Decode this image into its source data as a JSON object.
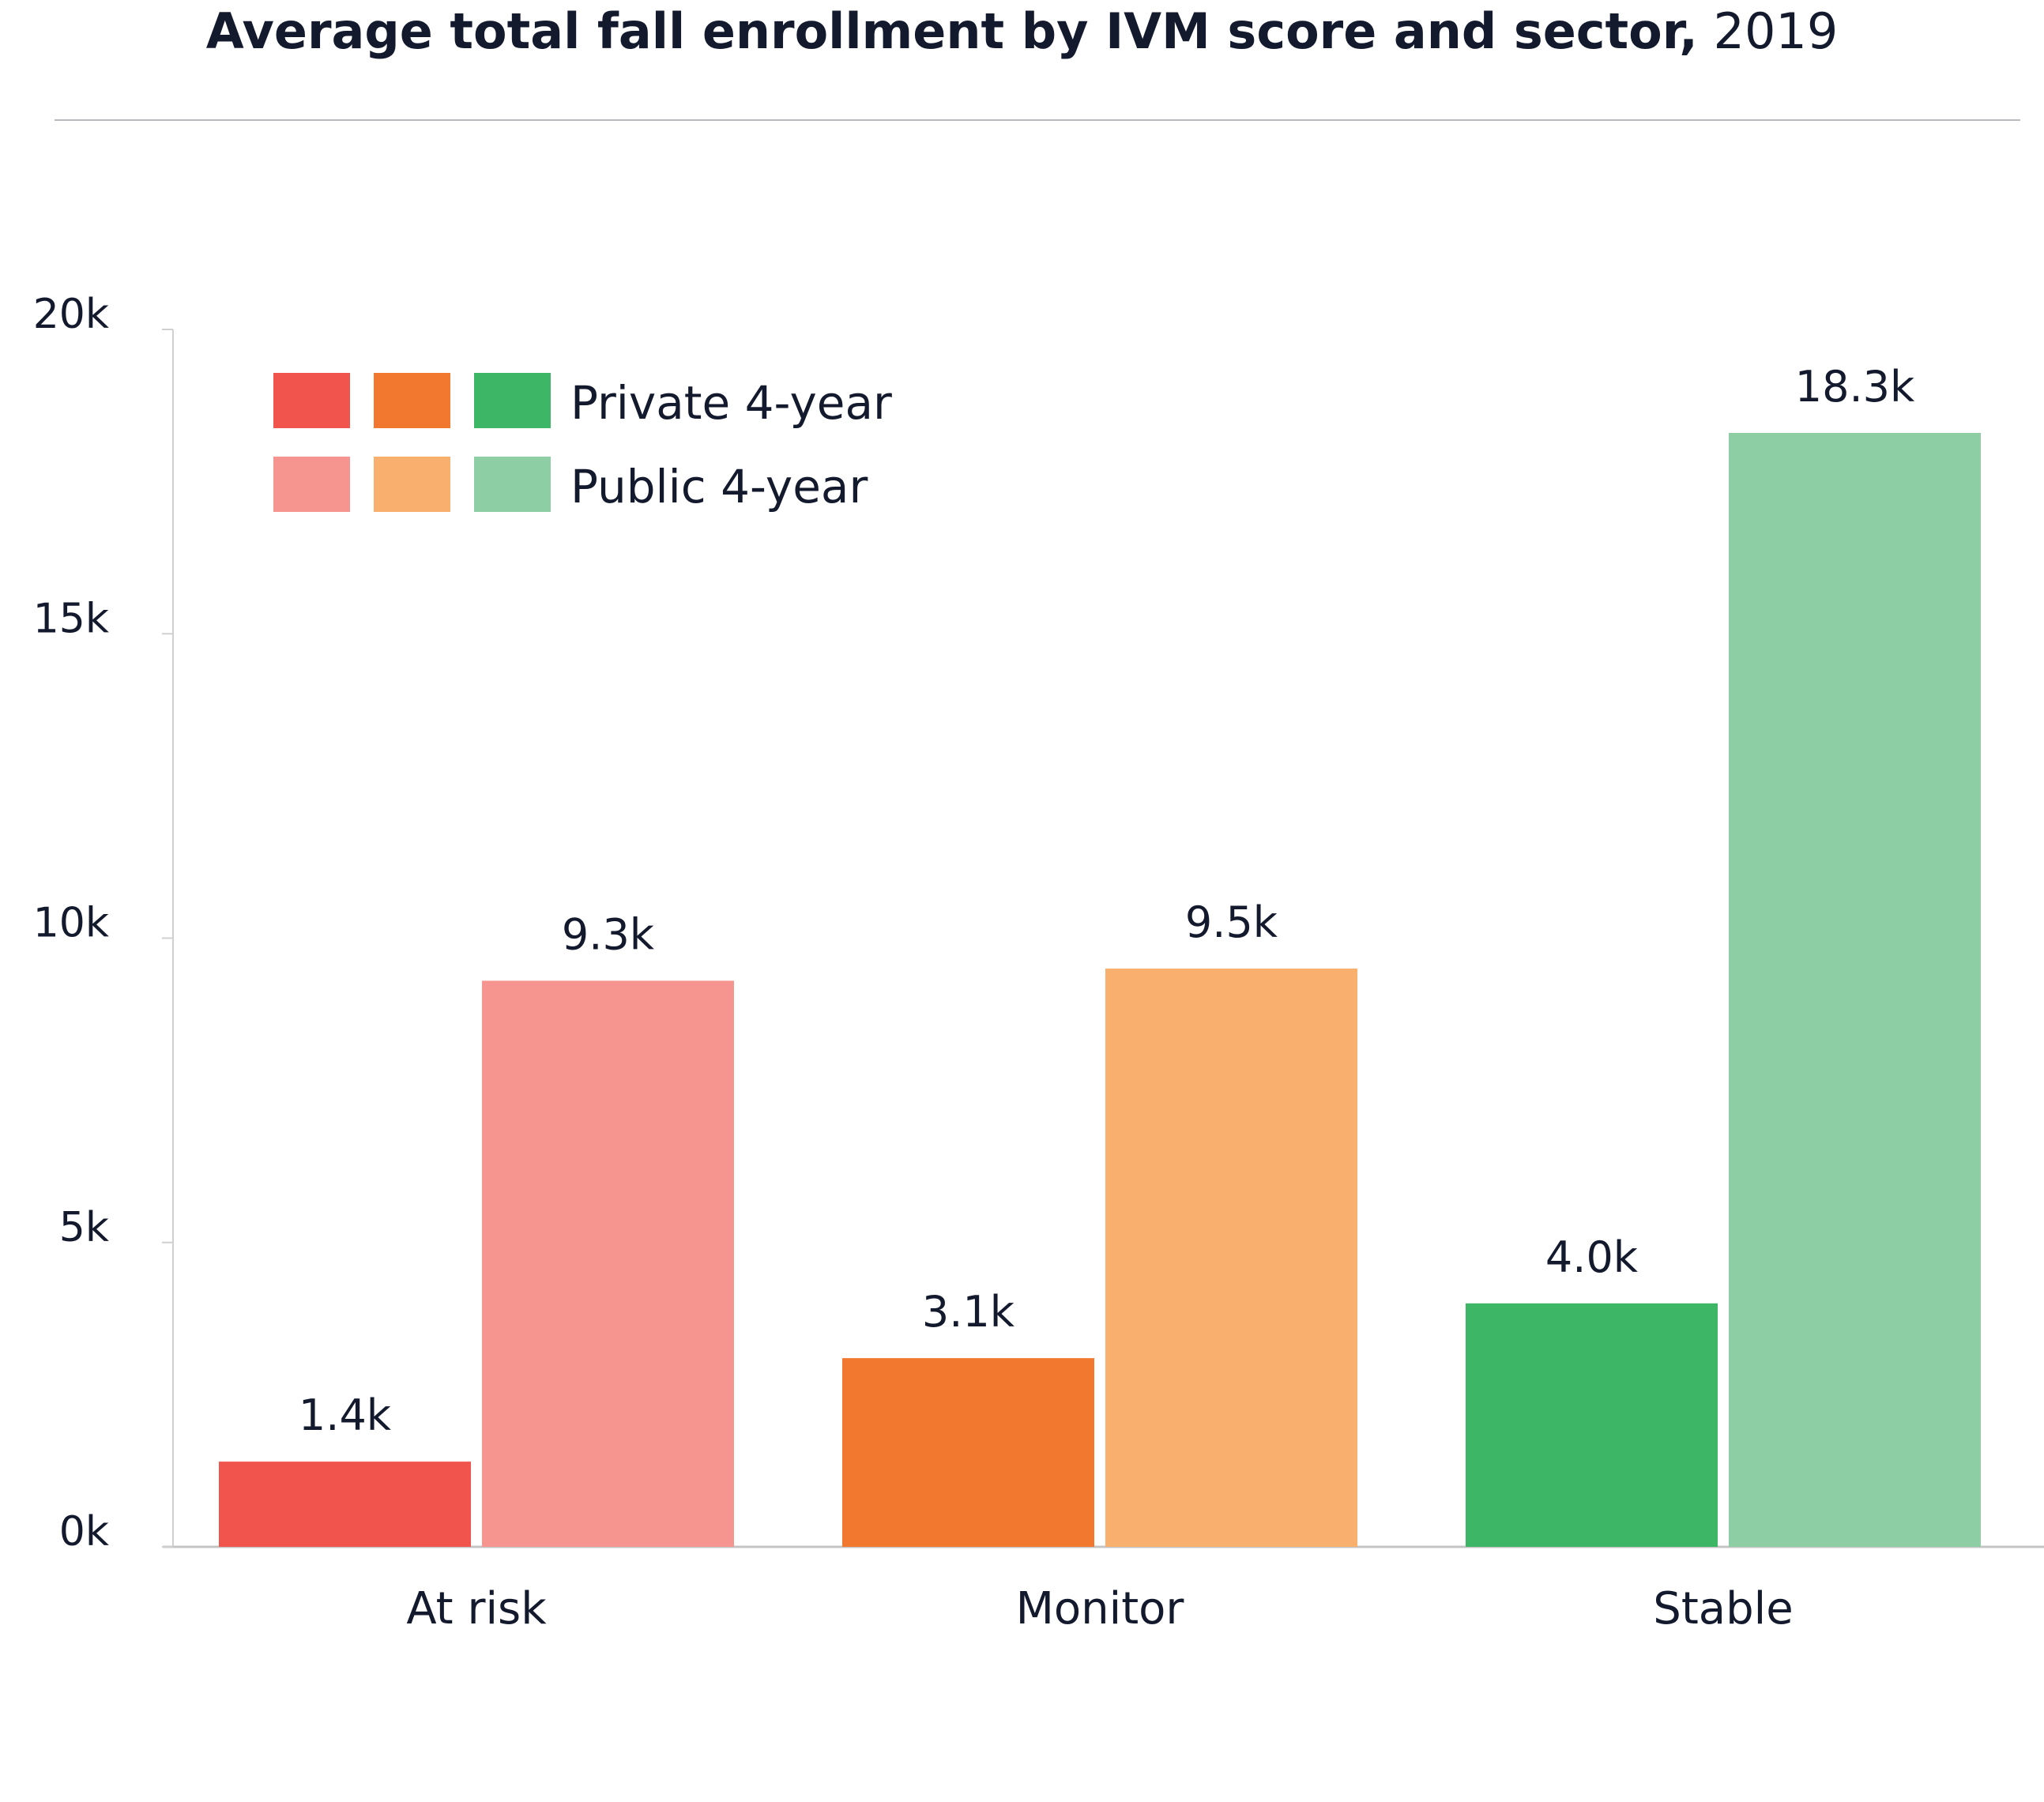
{
  "title_bold": "Average total fall enrollment by IVM score and sector,",
  "title_year": "2019",
  "chart_data": {
    "type": "bar",
    "title": "Average total fall enrollment by IVM score and sector, 2019",
    "xlabel": "",
    "ylabel": "",
    "ylim": [
      0,
      20000
    ],
    "yticks": [
      0,
      5000,
      10000,
      15000,
      20000
    ],
    "ytick_labels": [
      "0k",
      "5k",
      "10k",
      "15k",
      "20k"
    ],
    "categories": [
      "At risk",
      "Monitor",
      "Stable"
    ],
    "series": [
      {
        "name": "Private 4-year",
        "values": [
          1400,
          3100,
          4000
        ],
        "labels": [
          "1.4k",
          "3.1k",
          "4.0k"
        ],
        "colors": [
          "#f0544c",
          "#f2772f",
          "#3db766"
        ]
      },
      {
        "name": "Public 4-year",
        "values": [
          9300,
          9500,
          18300
        ],
        "labels": [
          "9.3k",
          "9.5k",
          "18.3k"
        ],
        "colors": [
          "#f6958f",
          "#f9b06f",
          "#8dcea4"
        ]
      }
    ],
    "legend": {
      "placement": "top-left",
      "entries": [
        "Private 4-year",
        "Public 4-year"
      ]
    },
    "grid": false
  }
}
